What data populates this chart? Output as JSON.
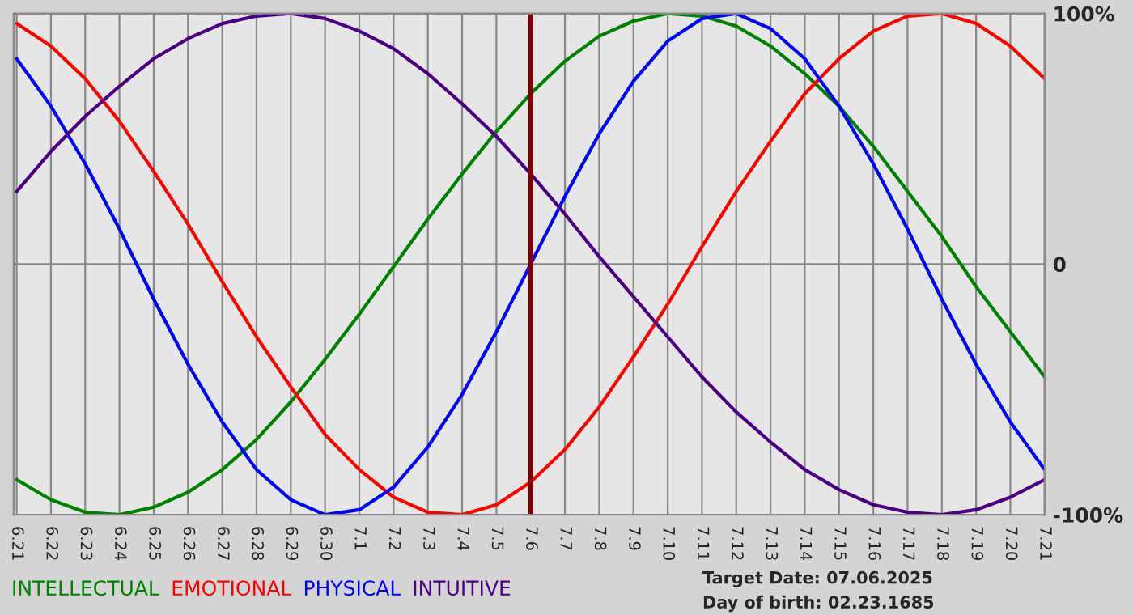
{
  "chart_data": {
    "type": "line",
    "categories": [
      "6.21",
      "6.22",
      "6.23",
      "6.24",
      "6.25",
      "6.26",
      "6.27",
      "6.28",
      "6.29",
      "6.30",
      "7.1",
      "7.2",
      "7.3",
      "7.4",
      "7.5",
      "7.6",
      "7.7",
      "7.8",
      "7.9",
      "7.10",
      "7.11",
      "7.12",
      "7.13",
      "7.14",
      "7.15",
      "7.16",
      "7.17",
      "7.18",
      "7.19",
      "7.20",
      "7.21"
    ],
    "series": [
      {
        "name": "INTELLECTUAL",
        "color": "#008000",
        "values": [
          -86,
          -94,
          -99,
          -100,
          -97,
          -91,
          -82,
          -70,
          -55,
          -38,
          -20,
          -1,
          18,
          36,
          53,
          68,
          81,
          91,
          97,
          100,
          99,
          95,
          87,
          76,
          63,
          47,
          29,
          11,
          -9,
          -27,
          -45
        ]
      },
      {
        "name": "EMOTIONAL",
        "color": "#ff0000",
        "values": [
          96,
          87,
          74,
          57,
          37,
          16,
          -7,
          -29,
          -49,
          -68,
          -82,
          -93,
          -99,
          -100,
          -96,
          -87,
          -74,
          -57,
          -37,
          -16,
          7,
          29,
          49,
          68,
          82,
          93,
          99,
          100,
          96,
          87,
          74
        ]
      },
      {
        "name": "PHYSICAL",
        "color": "#0000ff",
        "values": [
          82,
          63,
          40,
          14,
          -14,
          -40,
          -63,
          -82,
          -94,
          -100,
          -98,
          -89,
          -73,
          -52,
          -27,
          0,
          27,
          52,
          73,
          89,
          98,
          100,
          94,
          82,
          63,
          40,
          14,
          -14,
          -40,
          -63,
          -82
        ]
      },
      {
        "name": "INTUITIVE",
        "color": "#4b0082",
        "values": [
          29,
          45,
          59,
          71,
          82,
          90,
          96,
          99,
          100,
          98,
          93,
          86,
          76,
          64,
          51,
          36,
          20,
          3,
          -13,
          -29,
          -45,
          -59,
          -71,
          -82,
          -90,
          -96,
          -99,
          -100,
          -98,
          -93,
          -86
        ]
      }
    ],
    "ylim": [
      -100,
      100
    ],
    "yticks": [
      {
        "value": 100,
        "label": "100%"
      },
      0,
      {
        "value": -100,
        "label": "-100%"
      }
    ],
    "ref_lines": [
      {
        "axis": "x",
        "value": "7.6",
        "color": "#800000"
      }
    ],
    "annotations": [
      "Target Date: 07.06.2025",
      "Day of birth: 02.23.1685"
    ],
    "grid": true,
    "legend": "bottom",
    "line_style": "solid",
    "marker": "none"
  }
}
